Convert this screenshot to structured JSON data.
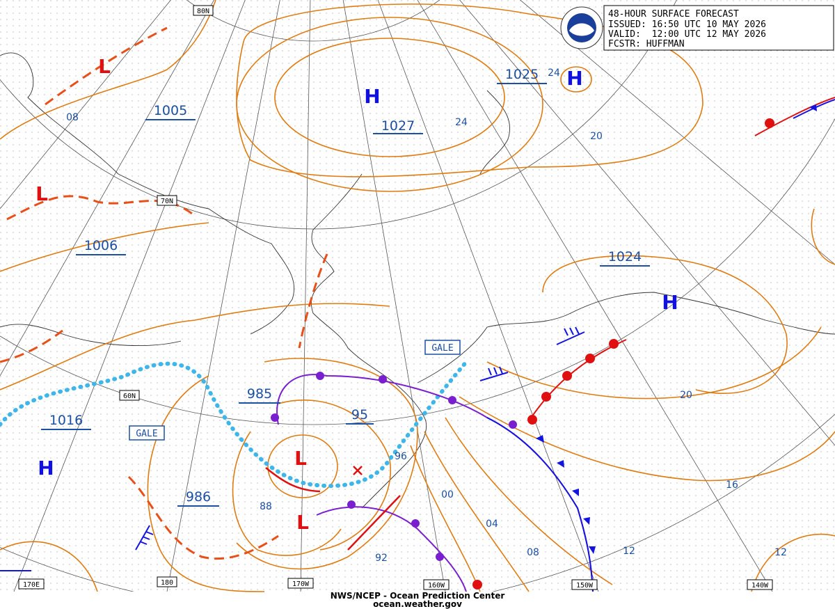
{
  "header": {
    "lines": [
      "48-HOUR SURFACE FORECAST",
      "ISSUED: 16:50 UTC 10 MAY 2026",
      "VALID:  12:00 UTC 12 MAY 2026",
      "FCSTR: HUFFMAN"
    ]
  },
  "footer": {
    "agency": "NWS/NCEP - Ocean Prediction Center",
    "website": "ocean.weather.gov"
  },
  "latitude_labels": [
    "80N",
    "70N",
    "60N"
  ],
  "longitude_labels": [
    "170E",
    "180",
    "170W",
    "160W",
    "150W",
    "140W"
  ],
  "centers": [
    "H",
    "H",
    "L",
    "L",
    "H",
    "H",
    "L",
    "L"
  ],
  "pressure_labels": [
    "1027",
    "1025",
    "1005",
    "1006",
    "1024",
    "1016",
    "985",
    "986",
    "95"
  ],
  "isobar_labels": [
    "08",
    "24",
    "24",
    "20",
    "20",
    "16",
    "12",
    "12",
    "08",
    "04",
    "00",
    "96",
    "92",
    "88"
  ],
  "warnings": [
    "GALE",
    "GALE"
  ]
}
